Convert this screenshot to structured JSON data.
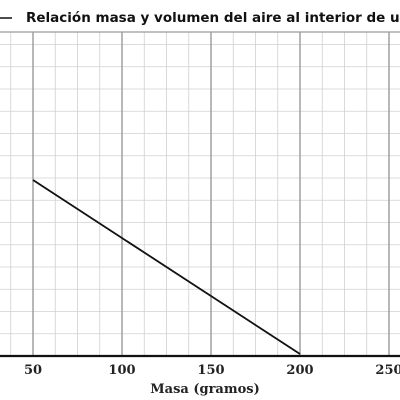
{
  "chart_data": {
    "type": "line",
    "title": "Relación masa y volumen del aire al interior de una jeringa",
    "xlabel": "Masa (gramos)",
    "ylabel": "",
    "x_ticks": [
      "50",
      "100",
      "150",
      "200",
      "250"
    ],
    "xlim": [
      35,
      255
    ],
    "grid": true,
    "colors": {
      "line": "#111111",
      "major_grid": "#9a9a9a",
      "minor_grid": "#d0d0d0"
    },
    "series": [
      {
        "name": "",
        "x": [
          50,
          200
        ],
        "y": [
          100,
          0
        ]
      }
    ]
  }
}
